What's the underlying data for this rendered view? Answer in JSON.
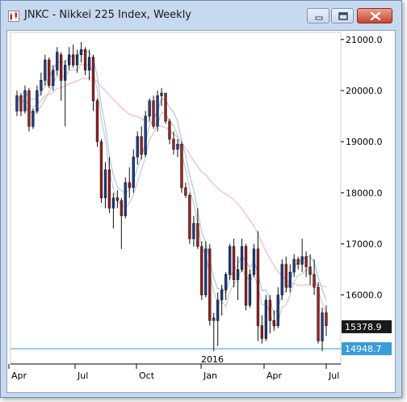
{
  "window": {
    "title": "JNKC - Nikkei 225 Index, Weekly"
  },
  "chart_data": {
    "type": "candlestick",
    "title": "JNKC - Nikkei 225 Index, Weekly",
    "ylim": [
      14800,
      21300
    ],
    "y_ticks": [
      "21000.0",
      "20000.0",
      "19000.0",
      "18000.0",
      "17000.0",
      "16000.0"
    ],
    "y_tick_values": [
      21000,
      20000,
      19000,
      18000,
      17000,
      16000
    ],
    "x_month_labels": [
      "Apr",
      "Jul",
      "Oct",
      "Jan",
      "Apr",
      "Jul"
    ],
    "year_label": "2016",
    "last_price_label": "15378.9",
    "marker_label": "14948.7",
    "marker_value": 14948.7,
    "colors": {
      "up": "#1f3f94",
      "down": "#a81e1e",
      "ma_fast": "#a6c8e8",
      "ma_slow": "#f3b6c8",
      "ma_gray": "#c8c8c8",
      "marker": "#3a9bd9",
      "price_box": "#1a1a1a"
    },
    "candles": [
      [
        19600,
        20000,
        19500,
        19900
      ],
      [
        19900,
        19950,
        19500,
        19600
      ],
      [
        19600,
        20100,
        19550,
        20000
      ],
      [
        20000,
        20050,
        19200,
        19300
      ],
      [
        19300,
        19650,
        19250,
        19600
      ],
      [
        19600,
        20100,
        19550,
        20000
      ],
      [
        20000,
        20350,
        19900,
        20200
      ],
      [
        20200,
        20700,
        20100,
        20600
      ],
      [
        20600,
        20650,
        20050,
        20100
      ],
      [
        20100,
        20500,
        20000,
        20400
      ],
      [
        20400,
        20850,
        20300,
        20750
      ],
      [
        20700,
        20750,
        19800,
        20200
      ],
      [
        20200,
        20600,
        19300,
        20500
      ],
      [
        20500,
        20850,
        20400,
        20700
      ],
      [
        20700,
        20900,
        20450,
        20500
      ],
      [
        20500,
        20800,
        20350,
        20700
      ],
      [
        20700,
        20950,
        20550,
        20800
      ],
      [
        20800,
        20850,
        20300,
        20400
      ],
      [
        20400,
        20800,
        20200,
        20650
      ],
      [
        20650,
        20700,
        19600,
        19800
      ],
      [
        19800,
        19850,
        18900,
        19000
      ],
      [
        19000,
        19050,
        17800,
        17900
      ],
      [
        17900,
        18600,
        17700,
        18450
      ],
      [
        18450,
        18700,
        17600,
        17700
      ],
      [
        17700,
        18000,
        17300,
        17900
      ],
      [
        17900,
        18050,
        17700,
        17850
      ],
      [
        17850,
        17900,
        16900,
        17550
      ],
      [
        17550,
        18300,
        17500,
        18200
      ],
      [
        18200,
        18500,
        17900,
        18100
      ],
      [
        18100,
        18850,
        18000,
        18700
      ],
      [
        18700,
        19200,
        18550,
        19100
      ],
      [
        19100,
        19300,
        18650,
        18750
      ],
      [
        18750,
        19600,
        18700,
        19500
      ],
      [
        19500,
        19850,
        19400,
        19800
      ],
      [
        19800,
        19900,
        19250,
        19300
      ],
      [
        19300,
        20000,
        19200,
        19900
      ],
      [
        19900,
        20050,
        19700,
        19950
      ],
      [
        19950,
        19950,
        19350,
        19400
      ],
      [
        19400,
        19450,
        18950,
        19050
      ],
      [
        19050,
        19200,
        18750,
        18850
      ],
      [
        18850,
        19050,
        18700,
        18950
      ],
      [
        18950,
        19000,
        18000,
        18100
      ],
      [
        18100,
        18200,
        17900,
        17950
      ],
      [
        17950,
        18000,
        17000,
        17100
      ],
      [
        17100,
        17550,
        16950,
        17400
      ],
      [
        17400,
        17700,
        16900,
        16950
      ],
      [
        16950,
        17050,
        15900,
        16000
      ],
      [
        16000,
        17050,
        15950,
        16900
      ],
      [
        16900,
        17000,
        15400,
        15500
      ],
      [
        15500,
        15650,
        14900,
        15550
      ],
      [
        15500,
        16050,
        15000,
        15900
      ],
      [
        15900,
        16200,
        15600,
        16100
      ],
      [
        16100,
        16450,
        15900,
        16400
      ],
      [
        16400,
        17000,
        16300,
        16950
      ],
      [
        16950,
        17100,
        16150,
        16300
      ],
      [
        16300,
        16750,
        15900,
        16500
      ],
      [
        16500,
        17100,
        16450,
        16950
      ],
      [
        16950,
        17000,
        15700,
        15800
      ],
      [
        15800,
        16500,
        15750,
        16400
      ],
      [
        16400,
        17000,
        16350,
        16900
      ],
      [
        16900,
        17250,
        15100,
        15400
      ],
      [
        15400,
        15600,
        15050,
        15150
      ],
      [
        15150,
        16000,
        15100,
        15900
      ],
      [
        15900,
        16000,
        15250,
        15500
      ],
      [
        15500,
        15700,
        15300,
        15400
      ],
      [
        15400,
        16150,
        15350,
        16000
      ],
      [
        16000,
        16700,
        15900,
        16600
      ],
      [
        16600,
        16750,
        16050,
        16150
      ],
      [
        16150,
        16600,
        16050,
        16450
      ],
      [
        16450,
        16800,
        16350,
        16700
      ],
      [
        16700,
        16750,
        16500,
        16600
      ],
      [
        16600,
        17100,
        16450,
        16750
      ],
      [
        16750,
        16850,
        16350,
        16550
      ],
      [
        16550,
        16800,
        16200,
        16400
      ],
      [
        16400,
        16700,
        16000,
        16150
      ],
      [
        16150,
        16250,
        15050,
        15100
      ],
      [
        15100,
        15750,
        14900,
        15650
      ],
      [
        15650,
        15800,
        15200,
        15400
      ]
    ]
  }
}
